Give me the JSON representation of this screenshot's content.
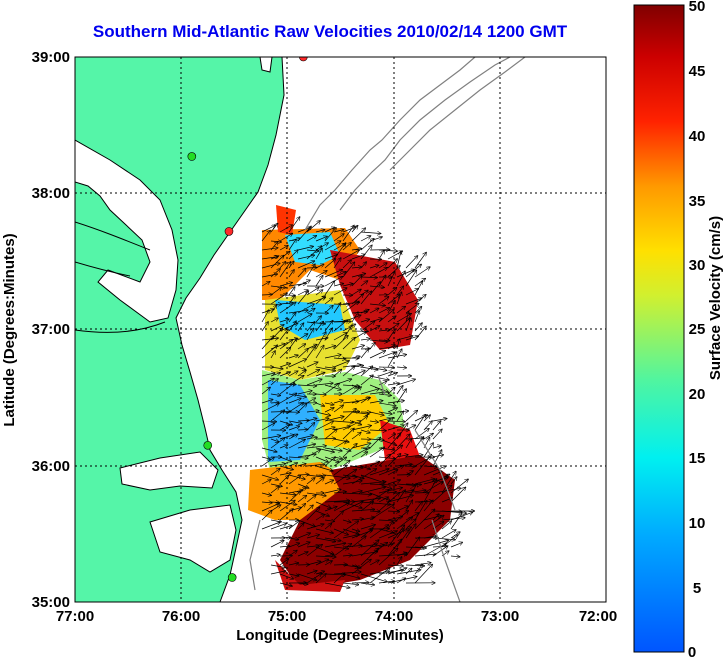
{
  "title": "Southern Mid-Atlantic Raw Velocities 2010/02/14 1200 GMT",
  "xlabel": "Longitude (Degrees:Minutes)",
  "ylabel": "Latitude (Degrees:Minutes)",
  "colorbar_label": "Surface Velocity (cm/s)",
  "x_ticks": [
    "77:00",
    "76:00",
    "75:00",
    "74:00",
    "73:00",
    "72:00"
  ],
  "y_ticks": [
    "39:00",
    "38:00",
    "37:00",
    "36:00",
    "35:00"
  ],
  "colorbar_ticks": [
    "50",
    "45",
    "40",
    "35",
    "30",
    "25",
    "20",
    "15",
    "10",
    "5",
    "0"
  ],
  "colors": {
    "land": "#55f5a8",
    "coastline": "#000000",
    "bathymetry": "#808080",
    "title": "#0000ee",
    "station_red": "#ff2a2a",
    "station_green": "#22dd22"
  },
  "stations": [
    {
      "color": "red",
      "lon": -74.85,
      "lat": 39.0
    },
    {
      "color": "green",
      "lon": -75.9,
      "lat": 38.27
    },
    {
      "color": "red",
      "lon": -75.55,
      "lat": 37.72
    },
    {
      "color": "green",
      "lon": -75.75,
      "lat": 36.15
    },
    {
      "color": "green",
      "lon": -75.52,
      "lat": 35.18
    }
  ]
}
